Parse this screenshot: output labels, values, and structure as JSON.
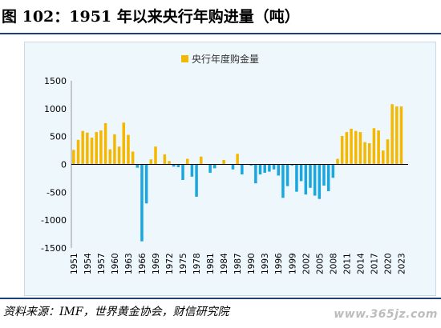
{
  "figure_title": "图 102：1951 年以来央行年购进量（吨）",
  "source_note": "资料来源：IMF，世界黄金协会，财信研究院",
  "watermark_text": "www.365jz.com",
  "colors": {
    "positive": "#f5b800",
    "negative": "#1aa7e0",
    "rule": "#1a3f7a",
    "panel_bg": "#eef7fc"
  },
  "chart_data": {
    "type": "bar",
    "title": "",
    "xlabel": "",
    "ylabel": "",
    "legend": {
      "position": "top-center",
      "label": "央行年度购金量"
    },
    "ylim": [
      -1500,
      1500
    ],
    "yticks": [
      1500,
      1000,
      500,
      0,
      -500,
      -1000,
      -1500
    ],
    "grid": false,
    "x_tick_labels": [
      "1951",
      "1954",
      "1957",
      "1960",
      "1963",
      "1966",
      "1969",
      "1972",
      "1975",
      "1978",
      "1981",
      "1984",
      "1987",
      "1990",
      "1993",
      "1996",
      "1999",
      "2002",
      "2005",
      "2008",
      "2011",
      "2014",
      "2017",
      "2020",
      "2023"
    ],
    "categories": [
      "1951",
      "1952",
      "1953",
      "1954",
      "1955",
      "1956",
      "1957",
      "1958",
      "1959",
      "1960",
      "1961",
      "1962",
      "1963",
      "1964",
      "1965",
      "1966",
      "1967",
      "1968",
      "1969",
      "1970",
      "1971",
      "1972",
      "1973",
      "1974",
      "1975",
      "1976",
      "1977",
      "1978",
      "1979",
      "1980",
      "1981",
      "1982",
      "1983",
      "1984",
      "1985",
      "1986",
      "1987",
      "1988",
      "1989",
      "1990",
      "1991",
      "1992",
      "1993",
      "1994",
      "1995",
      "1996",
      "1997",
      "1998",
      "1999",
      "2000",
      "2001",
      "2002",
      "2003",
      "2004",
      "2005",
      "2006",
      "2007",
      "2008",
      "2009",
      "2010",
      "2011",
      "2012",
      "2013",
      "2014",
      "2015",
      "2016",
      "2017",
      "2018",
      "2019",
      "2020",
      "2021",
      "2022",
      "2023",
      "2024"
    ],
    "series": [
      {
        "name": "央行年度购金量",
        "values": [
          260,
          440,
          600,
          570,
          480,
          580,
          610,
          740,
          270,
          540,
          320,
          750,
          530,
          230,
          -60,
          -1380,
          -700,
          90,
          320,
          0,
          180,
          60,
          -40,
          -50,
          -280,
          100,
          -220,
          -580,
          140,
          0,
          -150,
          -70,
          0,
          80,
          0,
          -90,
          190,
          -180,
          0,
          -20,
          -340,
          -180,
          -150,
          -130,
          -90,
          -200,
          -600,
          -390,
          -20,
          -490,
          -300,
          -540,
          -420,
          -560,
          -620,
          -380,
          -480,
          -240,
          100,
          510,
          580,
          640,
          600,
          580,
          400,
          380,
          650,
          610,
          250,
          450,
          1080,
          1040,
          1040,
          0
        ]
      }
    ]
  }
}
